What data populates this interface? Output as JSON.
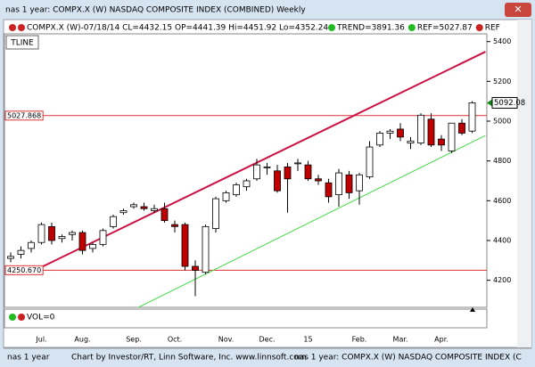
{
  "window_title": "nas 1 year: COMPX.X (W) NASDAQ COMPOSITE INDEX (COMBINED) Weekly",
  "chart_data": {
    "type": "candlestick",
    "header": "COMPX.X (W)-07/18/14 CL=4432.15 OP=4441.39 Hi=4451.92 Lo=4352.24",
    "header_indicators": [
      {
        "label": "TREND=3891.36",
        "color": "#22bb22"
      },
      {
        "label": "REF=5027.87",
        "color": "#22bb22"
      },
      {
        "label": "REF",
        "color": "#cc2222"
      }
    ],
    "button": "TLINE",
    "categories": [
      null,
      null,
      null,
      "Jul.",
      null,
      null,
      null,
      "Aug.",
      null,
      null,
      null,
      null,
      "Sep.",
      null,
      null,
      null,
      "Oct.",
      null,
      null,
      null,
      null,
      "Nov.",
      null,
      null,
      null,
      "Dec.",
      null,
      null,
      null,
      "15",
      null,
      null,
      null,
      null,
      "Feb.",
      null,
      null,
      null,
      "Mar.",
      null,
      null,
      null,
      "Apr.",
      null,
      null,
      null
    ],
    "ohlc": [
      [
        4310,
        4340,
        4290,
        4320
      ],
      [
        4330,
        4370,
        4310,
        4350
      ],
      [
        4360,
        4400,
        4340,
        4390
      ],
      [
        4390,
        4490,
        4380,
        4480
      ],
      [
        4470,
        4490,
        4380,
        4400
      ],
      [
        4410,
        4430,
        4390,
        4420
      ],
      [
        4430,
        4450,
        4400,
        4440
      ],
      [
        4440,
        4450,
        4330,
        4350
      ],
      [
        4360,
        4390,
        4340,
        4380
      ],
      [
        4380,
        4460,
        4370,
        4450
      ],
      [
        4470,
        4530,
        4460,
        4520
      ],
      [
        4540,
        4560,
        4530,
        4550
      ],
      [
        4570,
        4590,
        4560,
        4580
      ],
      [
        4570,
        4590,
        4550,
        4560
      ],
      [
        4550,
        4580,
        4540,
        4560
      ],
      [
        4560,
        4590,
        4490,
        4500
      ],
      [
        4480,
        4500,
        4440,
        4470
      ],
      [
        4480,
        4490,
        4250,
        4270
      ],
      [
        4270,
        4300,
        4120,
        4250
      ],
      [
        4240,
        4480,
        4230,
        4470
      ],
      [
        4460,
        4620,
        4440,
        4610
      ],
      [
        4600,
        4650,
        4590,
        4640
      ],
      [
        4630,
        4690,
        4620,
        4680
      ],
      [
        4670,
        4710,
        4650,
        4700
      ],
      [
        4710,
        4810,
        4700,
        4780
      ],
      [
        4770,
        4790,
        4730,
        4770
      ],
      [
        4750,
        4780,
        4640,
        4650
      ],
      [
        4770,
        4790,
        4540,
        4710
      ],
      [
        4790,
        4810,
        4750,
        4790
      ],
      [
        4780,
        4800,
        4700,
        4710
      ],
      [
        4710,
        4730,
        4680,
        4700
      ],
      [
        4690,
        4710,
        4590,
        4620
      ],
      [
        4630,
        4760,
        4570,
        4740
      ],
      [
        4730,
        4750,
        4610,
        4640
      ],
      [
        4650,
        4740,
        4580,
        4730
      ],
      [
        4720,
        4900,
        4710,
        4870
      ],
      [
        4880,
        4950,
        4870,
        4940
      ],
      [
        4940,
        4960,
        4910,
        4950
      ],
      [
        4960,
        4990,
        4900,
        4920
      ],
      [
        4890,
        4920,
        4860,
        4900
      ],
      [
        4890,
        5040,
        4880,
        5030
      ],
      [
        5010,
        5040,
        4870,
        4880
      ],
      [
        4910,
        4930,
        4850,
        4880
      ],
      [
        4850,
        4990,
        4840,
        4990
      ],
      [
        4990,
        5010,
        4930,
        4940
      ],
      [
        4950,
        5100,
        4940,
        5092.08
      ]
    ],
    "up_color": "#ffffff",
    "down_color": "#c00000",
    "ylim": [
      4064,
      5430
    ],
    "yticks": [
      4200,
      4400,
      4600,
      4800,
      5000,
      5200,
      5400
    ],
    "ref_lines": [
      {
        "value": 5027.868,
        "label": "5027.868"
      },
      {
        "value": 4250.67,
        "label": "4250.670"
      }
    ],
    "ref_color": "#dd3333",
    "trendlines": [
      {
        "color": "#cc1144",
        "start": [
          3,
          4266
        ],
        "end": [
          46.3,
          5349
        ]
      },
      {
        "color": "#44dd44",
        "start": [
          11.6,
          4042
        ],
        "end": [
          46.3,
          4928
        ]
      }
    ],
    "volume_label": "VOL=0"
  },
  "status_bar": [
    "nas 1 year",
    "Chart by Investor/RT, Linn Software, Inc. www.linnsoft.com",
    "nas 1 year: COMPX.X (W) NASDAQ COMPOSITE INDEX (C"
  ]
}
